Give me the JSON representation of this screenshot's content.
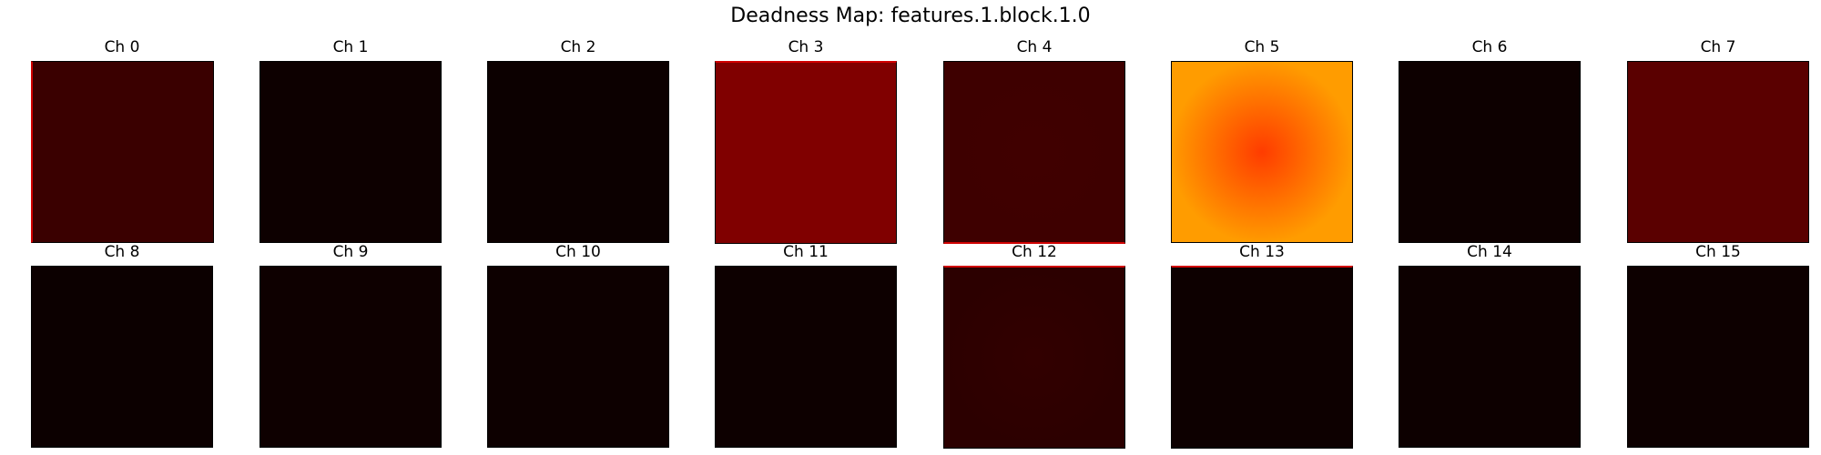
{
  "title": "Deadness Map: features.1.block.1.0",
  "chart_data": {
    "type": "heatmap",
    "title": "Deadness Map: features.1.block.1.0",
    "colormap": "hot",
    "panels": [
      {
        "label": "Ch 0",
        "center": "#3a0000",
        "edge": "#3a0000",
        "edge_accent": "left"
      },
      {
        "label": "Ch 1",
        "center": "#0d0000",
        "edge": "#0d0000"
      },
      {
        "label": "Ch 2",
        "center": "#0c0000",
        "edge": "#0c0000"
      },
      {
        "label": "Ch 3",
        "center": "#800000",
        "edge": "#800000",
        "edge_accent": "top"
      },
      {
        "label": "Ch 4",
        "center": "#400000",
        "edge": "#3e0000",
        "edge_accent": "bottom"
      },
      {
        "label": "Ch 5",
        "center": "#ff3c00",
        "edge": "#ff9c00"
      },
      {
        "label": "Ch 6",
        "center": "#0d0000",
        "edge": "#0d0000"
      },
      {
        "label": "Ch 7",
        "center": "#5a0000",
        "edge": "#5a0000"
      },
      {
        "label": "Ch 8",
        "center": "#0c0000",
        "edge": "#0c0000"
      },
      {
        "label": "Ch 9",
        "center": "#0e0000",
        "edge": "#0e0000"
      },
      {
        "label": "Ch 10",
        "center": "#0d0000",
        "edge": "#0d0000"
      },
      {
        "label": "Ch 11",
        "center": "#0d0000",
        "edge": "#0d0000"
      },
      {
        "label": "Ch 12",
        "center": "#320000",
        "edge": "#2c0000",
        "edge_accent": "top"
      },
      {
        "label": "Ch 13",
        "center": "#0d0000",
        "edge": "#0d0000",
        "edge_accent": "top"
      },
      {
        "label": "Ch 14",
        "center": "#0d0000",
        "edge": "#0d0000"
      },
      {
        "label": "Ch 15",
        "center": "#0d0000",
        "edge": "#0d0000"
      }
    ]
  }
}
